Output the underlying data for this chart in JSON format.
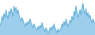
{
  "values": [
    85,
    95,
    120,
    105,
    130,
    115,
    145,
    125,
    110,
    140,
    130,
    150,
    135,
    120,
    160,
    140,
    155,
    130,
    145,
    125,
    110,
    100,
    115,
    105,
    90,
    80,
    95,
    85,
    100,
    90,
    110,
    95,
    85,
    75,
    90,
    80,
    70,
    65,
    80,
    70,
    85,
    75,
    95,
    80,
    70,
    60,
    75,
    65,
    55,
    60,
    75,
    65,
    80,
    70,
    90,
    75,
    65,
    55,
    70,
    60,
    65,
    75,
    90,
    80,
    100,
    85,
    110,
    95,
    80,
    90,
    105,
    95,
    120,
    105,
    140,
    125,
    160,
    135,
    115,
    130,
    145,
    125,
    155,
    170,
    140,
    130,
    150,
    120,
    135,
    115,
    125,
    105,
    95,
    110,
    100,
    90
  ],
  "line_color": "#5badd6",
  "fill_color": "#9dcfed",
  "background_color": "#ffffff",
  "linewidth": 0.7
}
